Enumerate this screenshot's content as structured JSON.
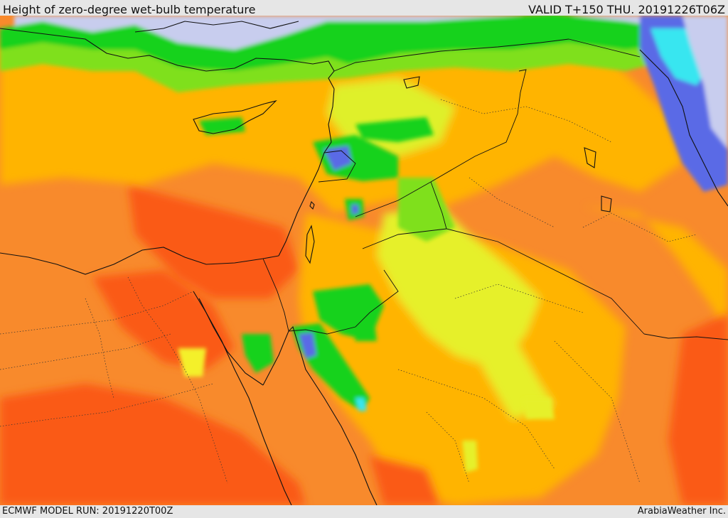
{
  "header": {
    "title": "Height of zero-degree wet-bulb temperature",
    "valid": "VALID T+150 THU. 20191226T06Z"
  },
  "footer": {
    "model_run": "ECMWF MODEL RUN: 20191220T00Z",
    "brand": "ArabiaWeather Inc."
  },
  "map": {
    "field": "zero-degree wet-bulb height",
    "palette": {
      "sea_low": "#c8cdee",
      "blue": "#5a6ae6",
      "cyan": "#37e6f0",
      "green": "#16d21c",
      "light_green": "#7fe01a",
      "yellow_green": "#dff02a",
      "yellow": "#f4f02a",
      "amber": "#ffb400",
      "orange": "#f88a2c",
      "red_orange": "#fa5a18"
    },
    "overlays": [
      "coastlines",
      "country-borders",
      "province-borders"
    ]
  }
}
